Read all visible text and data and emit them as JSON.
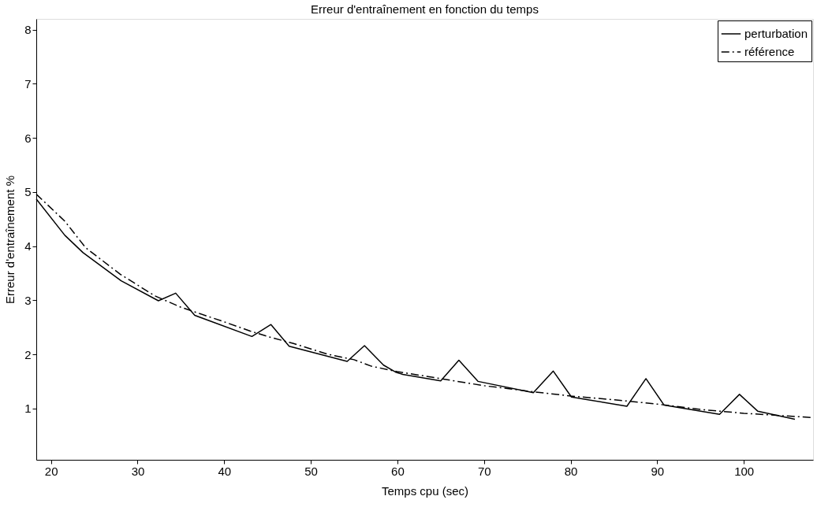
{
  "chart_data": {
    "type": "line",
    "title": "Erreur d'entraînement en fonction du temps",
    "xlabel": "Temps cpu (sec)",
    "ylabel": "Erreur d'entraînement %",
    "xlim": [
      18.3,
      108
    ],
    "ylim": [
      0.05,
      8.2
    ],
    "xticks": [
      20,
      30,
      40,
      50,
      60,
      70,
      80,
      90,
      100
    ],
    "yticks": [
      1,
      2,
      3,
      4,
      5,
      6,
      7,
      8
    ],
    "grid": false,
    "legend": "top right",
    "series": [
      {
        "name": "perturbation",
        "color": "#000000",
        "line_style": "solid",
        "x": [
          18.3,
          21.6,
          23.7,
          28.1,
          32.4,
          34.4,
          36.6,
          43.2,
          45.4,
          47.5,
          54.2,
          56.2,
          58.4,
          59.8,
          60.6,
          65.0,
          67.1,
          69.3,
          75.7,
          78.0,
          80.1,
          86.5,
          88.7,
          90.8,
          97.2,
          99.5,
          101.6,
          105.9
        ],
        "values": [
          4.87,
          4.2,
          3.88,
          3.36,
          2.99,
          3.13,
          2.72,
          2.33,
          2.55,
          2.15,
          1.87,
          2.16,
          1.8,
          1.67,
          1.63,
          1.51,
          1.89,
          1.5,
          1.29,
          1.69,
          1.21,
          1.04,
          1.55,
          1.06,
          0.89,
          1.26,
          0.95,
          0.8
        ]
      },
      {
        "name": "référence",
        "color": "#000000",
        "line_style": "dashdot",
        "x": [
          18.3,
          21.6,
          24,
          28,
          32,
          35,
          40,
          43,
          45,
          48,
          52,
          55,
          57,
          60,
          65,
          70,
          75,
          80,
          85,
          90,
          95,
          100,
          105,
          108
        ],
        "values": [
          4.96,
          4.46,
          3.97,
          3.48,
          3.08,
          2.87,
          2.6,
          2.43,
          2.33,
          2.2,
          2.0,
          1.9,
          1.78,
          1.68,
          1.55,
          1.42,
          1.32,
          1.23,
          1.16,
          1.08,
          0.98,
          0.91,
          0.86,
          0.83
        ]
      }
    ]
  }
}
